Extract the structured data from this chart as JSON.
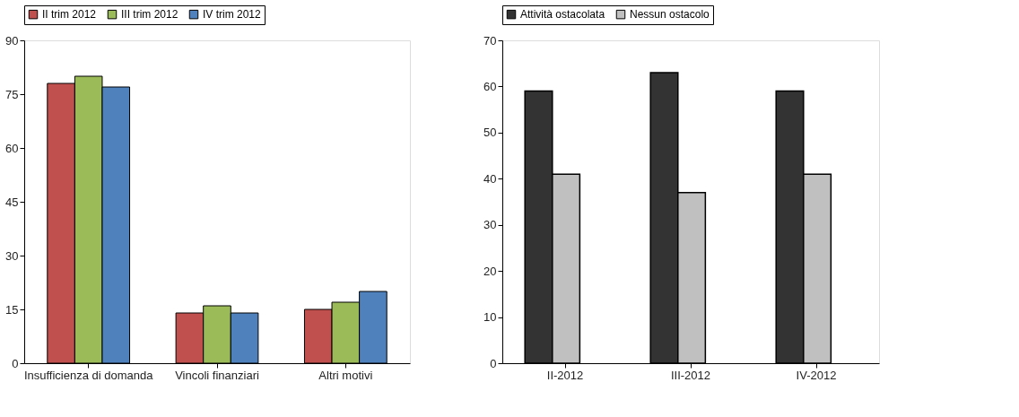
{
  "chart_data": [
    {
      "type": "bar",
      "categories": [
        "Insufficienza di domanda",
        "Vincoli finanziari",
        "Altri motivi"
      ],
      "ylim": [
        0,
        90
      ],
      "yticks": [
        0,
        15,
        30,
        45,
        60,
        75,
        90
      ],
      "grid": false,
      "legend": "top",
      "series": [
        {
          "name": "II trim 2012",
          "color": "#c0504d",
          "values": [
            78,
            14,
            15
          ]
        },
        {
          "name": "III trim 2012",
          "color": "#9bbb59",
          "values": [
            80,
            16,
            17
          ]
        },
        {
          "name": "IV trim 2012",
          "color": "#4f81bd",
          "values": [
            77,
            14,
            20
          ]
        }
      ]
    },
    {
      "type": "bar",
      "categories": [
        "II-2012",
        "III-2012",
        "IV-2012"
      ],
      "ylim": [
        0,
        70
      ],
      "yticks": [
        0,
        10,
        20,
        30,
        40,
        50,
        60,
        70
      ],
      "grid": false,
      "legend": "top",
      "series": [
        {
          "name": "Attività ostacolata",
          "color": "#333333",
          "values": [
            59,
            63,
            59
          ]
        },
        {
          "name": "Nessun ostacolo",
          "color": "#c0c0c0",
          "values": [
            41,
            37,
            41
          ]
        }
      ]
    }
  ]
}
